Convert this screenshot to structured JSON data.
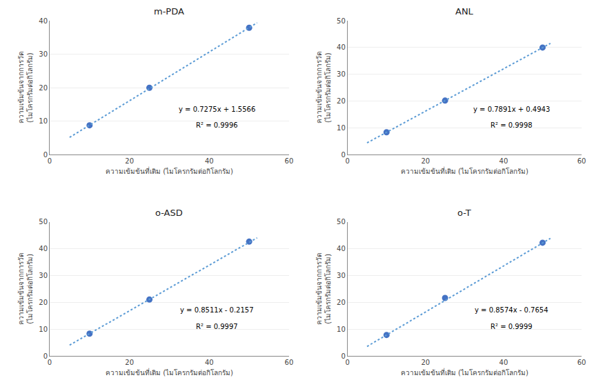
{
  "chart_data": [
    {
      "type": "scatter",
      "title": "m-PDA",
      "xlabel": "ความเข้มข้นที่เติม (ไมโครกรัมต่อกิโลกรัม)",
      "ylabel": "ความเข้มข้นจากการวัด\n(ไมโครกรัมต่อกิโลกรัม)",
      "series": [
        {
          "type": "scatter",
          "marker": "circle",
          "color": "#4472C4",
          "x": [
            10,
            25,
            50
          ],
          "values": [
            8.8,
            20.0,
            37.9
          ]
        },
        {
          "type": "line",
          "line_style": "dotted",
          "color": "#5B9BD5",
          "x": [
            5,
            52
          ],
          "values": [
            5.1941,
            39.3866
          ]
        }
      ],
      "annotations": [
        "y = 0.7275x + 1.5566",
        "R² = 0.9996"
      ],
      "xlim": [
        0,
        60
      ],
      "ylim": [
        0,
        40
      ],
      "xticks": [
        0,
        20,
        40,
        60
      ],
      "yticks": [
        0,
        10,
        20,
        30,
        40
      ],
      "grid": "y"
    },
    {
      "type": "scatter",
      "title": "ANL",
      "xlabel": "ความเข้มข้นที่เติม (ไมโครกรัมต่อกิโลกรัม)",
      "ylabel": "ความเข้มข้นจากการวัด\n(ไมโครกรัมต่อกิโลกรัม)",
      "series": [
        {
          "type": "scatter",
          "marker": "circle",
          "color": "#4472C4",
          "x": [
            10,
            25,
            50
          ],
          "values": [
            8.4,
            20.2,
            40.0
          ]
        },
        {
          "type": "line",
          "line_style": "dotted",
          "color": "#5B9BD5",
          "x": [
            5,
            52
          ],
          "values": [
            4.4398,
            41.5275
          ]
        }
      ],
      "annotations": [
        "y = 0.7891x + 0.4943",
        "R² = 0.9998"
      ],
      "xlim": [
        0,
        60
      ],
      "ylim": [
        0,
        50
      ],
      "xticks": [
        0,
        20,
        40,
        60
      ],
      "yticks": [
        0,
        10,
        20,
        30,
        40,
        50
      ],
      "grid": "y"
    },
    {
      "type": "scatter",
      "title": "o-ASD",
      "xlabel": "ความเข้มข้นที่เติม (ไมโครกรัมต่อกิโลกรัม)",
      "ylabel": "ความเข้มข้นจากการวัด\n(ไมโครกรัมต่อกิโลกรัม)",
      "series": [
        {
          "type": "scatter",
          "marker": "circle",
          "color": "#4472C4",
          "x": [
            10,
            25,
            50
          ],
          "values": [
            8.3,
            21.0,
            42.6
          ]
        },
        {
          "type": "line",
          "line_style": "dotted",
          "color": "#5B9BD5",
          "x": [
            5,
            52
          ],
          "values": [
            4.0398,
            44.0415
          ]
        }
      ],
      "annotations": [
        "y = 0.8511x - 0.2157",
        "R² = 0.9997"
      ],
      "xlim": [
        0,
        60
      ],
      "ylim": [
        0,
        50
      ],
      "xticks": [
        0,
        20,
        40,
        60
      ],
      "yticks": [
        0,
        10,
        20,
        30,
        40,
        50
      ],
      "grid": "y"
    },
    {
      "type": "scatter",
      "title": "o-T",
      "xlabel": "ความเข้มข้นที่เติม (ไมโครกรัมต่อกิโลกรัม)",
      "ylabel": "ความเข้มข้นจากการวัด\n(ไมโครกรัมต่อกิโลกรัม)",
      "series": [
        {
          "type": "scatter",
          "marker": "circle",
          "color": "#4472C4",
          "x": [
            10,
            25,
            50
          ],
          "values": [
            7.8,
            21.6,
            42.2
          ]
        },
        {
          "type": "line",
          "line_style": "dotted",
          "color": "#5B9BD5",
          "x": [
            5,
            52
          ],
          "values": [
            3.5216,
            43.8194
          ]
        }
      ],
      "annotations": [
        "y = 0.8574x - 0.7654",
        "R² = 0.9999"
      ],
      "xlim": [
        0,
        60
      ],
      "ylim": [
        0,
        50
      ],
      "xticks": [
        0,
        20,
        40,
        60
      ],
      "yticks": [
        0,
        10,
        20,
        30,
        40,
        50
      ],
      "grid": "y"
    }
  ]
}
